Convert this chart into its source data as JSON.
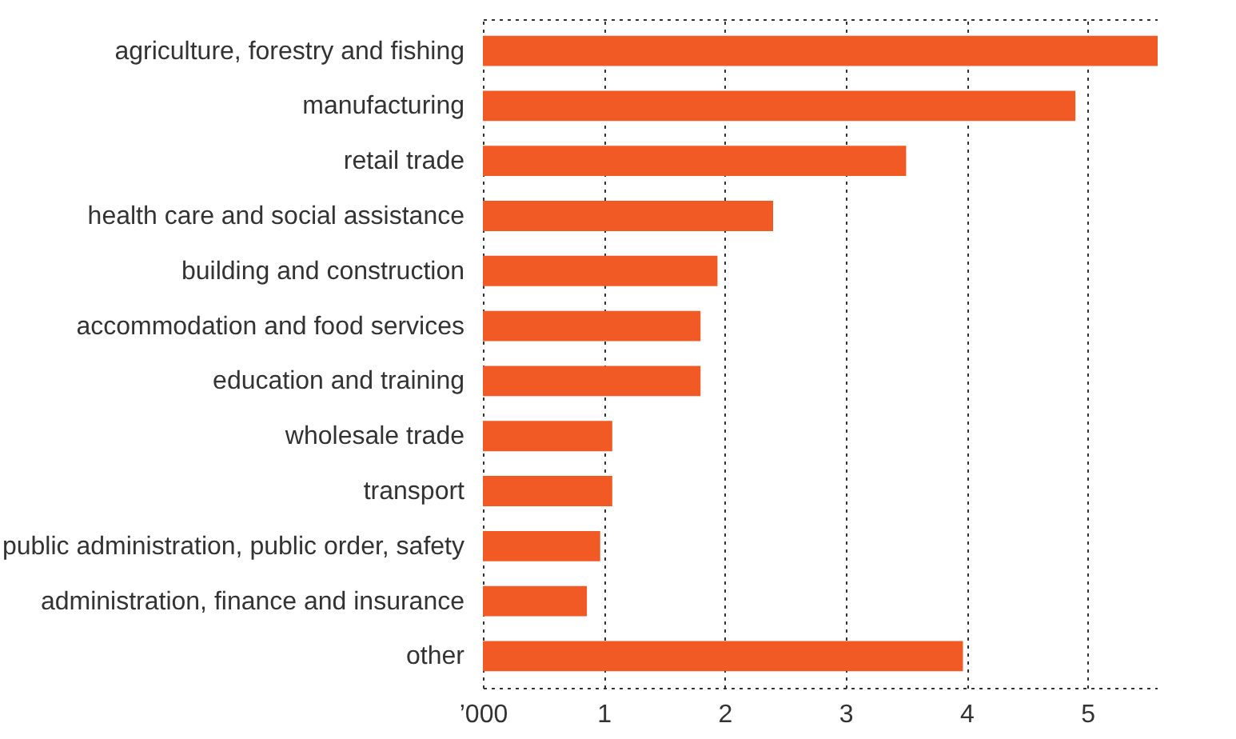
{
  "chart_data": {
    "type": "bar",
    "orientation": "horizontal",
    "categories": [
      "agriculture, forestry and fishing",
      "manufacturing",
      "retail trade",
      "health care and social assistance",
      "building and construction",
      "accommodation and food services",
      "education and training",
      "wholesale trade",
      "transport",
      "public administration, public order, safety",
      "administration, finance and insurance",
      "other"
    ],
    "values": [
      5.58,
      4.9,
      3.5,
      2.4,
      1.94,
      1.8,
      1.8,
      1.07,
      1.07,
      0.97,
      0.86,
      3.97
    ],
    "color": "#f15a24",
    "xlim": [
      0,
      5.58
    ],
    "xticks": [
      {
        "value": 0,
        "label": "’000"
      },
      1,
      2,
      3,
      4,
      5
    ],
    "grid": "x"
  }
}
